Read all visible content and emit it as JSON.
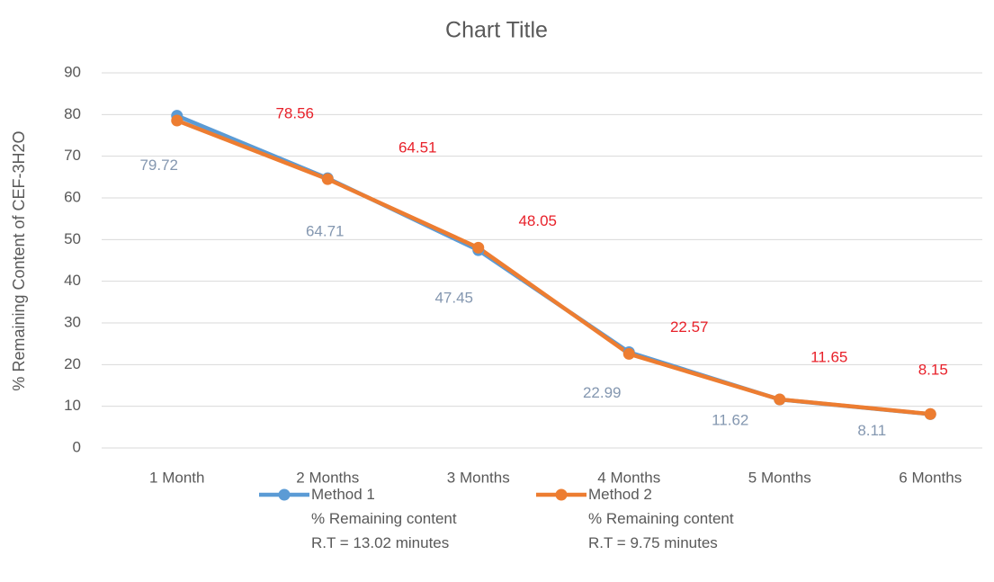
{
  "chart_data": {
    "type": "line",
    "title": "Chart Title",
    "y_label": "% Remaining Content of CEF-3H2O",
    "categories": [
      "1 Month",
      "2 Months",
      "3 Months",
      "4 Months",
      "5 Months",
      "6 Months"
    ],
    "series": [
      {
        "name": "Method 1\n% Remaining content\nR.T = 13.02 minutes",
        "color": "#5b9bd5",
        "label_color": "#8497b0",
        "values": [
          79.72,
          64.71,
          47.45,
          22.99,
          11.62,
          8.11
        ]
      },
      {
        "name": "Method 2\n% Remaining content\nR.T = 9.75 minutes",
        "color": "#ed7d31",
        "label_color": "#e8212a",
        "values": [
          78.56,
          64.51,
          48.05,
          22.57,
          11.65,
          8.15
        ]
      }
    ],
    "ylim": [
      0,
      90
    ],
    "yticks": [
      0,
      10,
      20,
      30,
      40,
      50,
      60,
      70,
      80,
      90
    ],
    "grid": true,
    "legend": "bottom"
  }
}
